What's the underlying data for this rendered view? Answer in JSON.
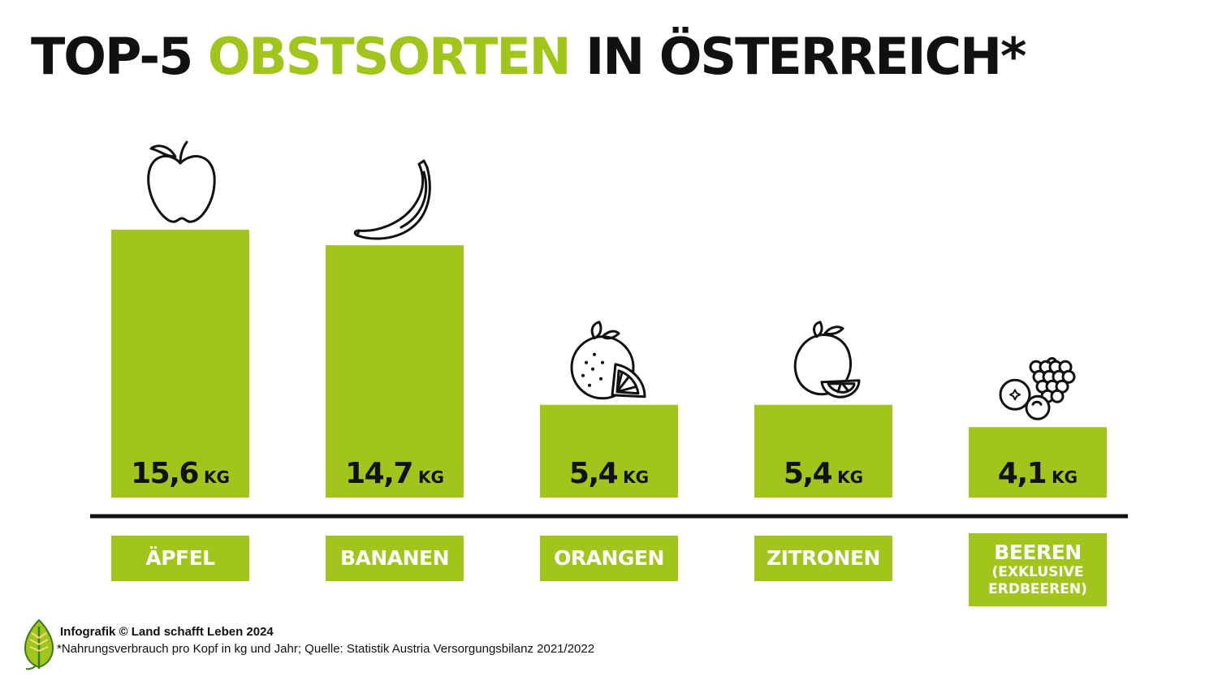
{
  "title": {
    "part1": "TOP-5 ",
    "part2": "OBSTSORTEN",
    "part3": " IN ÖSTERREICH*"
  },
  "colors": {
    "accent": "#a2c51c",
    "text": "#111111",
    "baseline": "#111111"
  },
  "chart_data": {
    "type": "bar",
    "categories": [
      "ÄPFEL",
      "BANANEN",
      "ORANGEN",
      "ZITRONEN",
      "BEEREN (EXKLUSIVE ERDBEEREN)"
    ],
    "values": [
      15.6,
      14.7,
      5.4,
      5.4,
      4.1
    ],
    "value_labels": [
      "15,6",
      "14,7",
      "5,4",
      "5,4",
      "4,1"
    ],
    "unit": "KG",
    "category_labels": [
      {
        "main": "ÄPFEL",
        "sub": ""
      },
      {
        "main": "BANANEN",
        "sub": ""
      },
      {
        "main": "ORANGEN",
        "sub": ""
      },
      {
        "main": "ZITRONEN",
        "sub": ""
      },
      {
        "main": "BEEREN",
        "sub": "(EXKLUSIVE ERDBEEREN)"
      }
    ],
    "icons": [
      "apple-icon",
      "banana-icon",
      "orange-icon",
      "lemon-icon",
      "berries-icon"
    ],
    "ylim": [
      0,
      16
    ],
    "xlabel": "",
    "ylabel": "",
    "grid": false,
    "legend": "none"
  },
  "footer": {
    "credit": "Infografik © Land schafft Leben 2024",
    "note": "*Nahrungsverbrauch pro Kopf in kg und Jahr; Quelle: Statistik Austria Versorgungsbilanz 2021/2022",
    "logo_icon": "leaf-logo-icon"
  }
}
